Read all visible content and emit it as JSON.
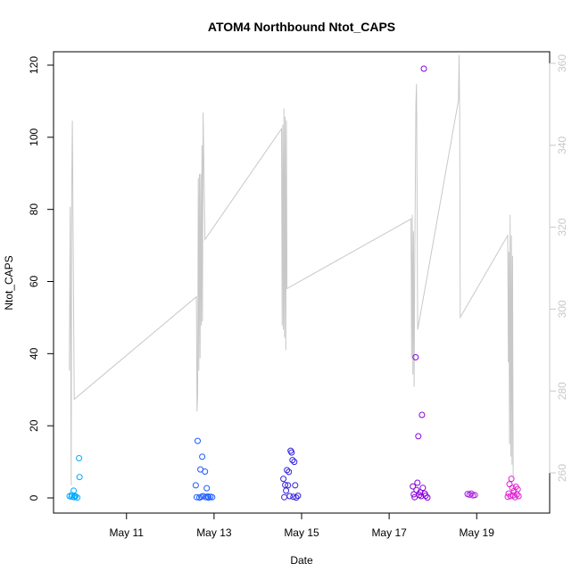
{
  "chart_data": {
    "type": "scatter",
    "title": "ATOM4 Northbound Ntot_CAPS",
    "xlabel": "Date",
    "ylabel": "Ntot_CAPS",
    "ylim": [
      0,
      120
    ],
    "x_ticks": [
      "May 11",
      "May 13",
      "May 15",
      "May 17",
      "May 19"
    ],
    "y_ticks": [
      0,
      20,
      40,
      60,
      80,
      100,
      120
    ],
    "y2_ticks": [
      260,
      280,
      300,
      320,
      340,
      360
    ],
    "y2_color": "#c8c8c8",
    "x_domain": [
      "May 9, 08:00",
      "May 20, 16:00"
    ],
    "series": [
      {
        "color": "#00aaff",
        "points": [
          [
            "May 9, 16:48",
            0.5
          ],
          [
            "May 9, 17:50",
            0.3
          ],
          [
            "May 9, 18:00",
            0.8
          ],
          [
            "May 9, 19:00",
            2.0
          ],
          [
            "May 9, 19:12",
            0.2
          ],
          [
            "May 9, 19:40",
            0.6
          ],
          [
            "May 9, 20:00",
            0.4
          ],
          [
            "May 9, 21:00",
            0.1
          ],
          [
            "May 9, 22:00",
            11.0
          ],
          [
            "May 9, 22:15",
            5.8
          ]
        ]
      },
      {
        "color": "#1a5cff",
        "points": [
          [
            "May 12, 14:00",
            3.5
          ],
          [
            "May 12, 14:30",
            0.2
          ],
          [
            "May 12, 15:00",
            15.8
          ],
          [
            "May 12, 16:00",
            0.1
          ],
          [
            "May 12, 16:30",
            7.9
          ],
          [
            "May 12, 17:00",
            0.3
          ],
          [
            "May 12, 17:30",
            11.4
          ],
          [
            "May 12, 18:00",
            0.5
          ],
          [
            "May 12, 19:00",
            7.3
          ],
          [
            "May 12, 19:30",
            0.2
          ],
          [
            "May 12, 20:00",
            2.7
          ],
          [
            "May 12, 20:30",
            0.4
          ],
          [
            "May 12, 21:00",
            0.1
          ],
          [
            "May 12, 22:00",
            0.3
          ],
          [
            "May 12, 23:00",
            0.2
          ]
        ]
      },
      {
        "color": "#3322dd",
        "points": [
          [
            "May 14, 14:00",
            5.3
          ],
          [
            "May 14, 14:30",
            0.2
          ],
          [
            "May 14, 15:00",
            3.6
          ],
          [
            "May 14, 15:30",
            2.0
          ],
          [
            "May 14, 16:00",
            7.7
          ],
          [
            "May 14, 16:30",
            3.5
          ],
          [
            "May 14, 17:00",
            7.2
          ],
          [
            "May 14, 17:30",
            0.5
          ],
          [
            "May 14, 18:00",
            13.1
          ],
          [
            "May 14, 18:30",
            12.6
          ],
          [
            "May 14, 19:00",
            10.5
          ],
          [
            "May 14, 19:30",
            0.3
          ],
          [
            "May 14, 20:00",
            10.0
          ],
          [
            "May 14, 20:30",
            3.5
          ],
          [
            "May 14, 21:00",
            0.1
          ],
          [
            "May 14, 22:00",
            0.6
          ]
        ]
      },
      {
        "color": "#8800dd",
        "points": [
          [
            "May 17, 13:00",
            3.2
          ],
          [
            "May 17, 13:30",
            1.0
          ],
          [
            "May 17, 14:00",
            0.2
          ],
          [
            "May 17, 14:30",
            39.0
          ],
          [
            "May 17, 15:00",
            2.2
          ],
          [
            "May 17, 15:30",
            4.2
          ],
          [
            "May 17, 16:00",
            17.1
          ],
          [
            "May 17, 16:30",
            0.8
          ],
          [
            "May 17, 17:00",
            1.5
          ],
          [
            "May 17, 17:30",
            0.5
          ],
          [
            "May 17, 18:00",
            23.0
          ],
          [
            "May 17, 18:30",
            2.8
          ],
          [
            "May 17, 19:00",
            119.0
          ],
          [
            "May 17, 19:30",
            1.2
          ],
          [
            "May 17, 20:00",
            0.6
          ],
          [
            "May 17, 21:00",
            0.1
          ]
        ]
      },
      {
        "color": "#aa22dd",
        "points": [
          [
            "May 18, 19:00",
            1.1
          ],
          [
            "May 18, 20:00",
            0.9
          ],
          [
            "May 18, 21:00",
            1.2
          ],
          [
            "May 18, 22:00",
            0.7
          ],
          [
            "May 18, 23:00",
            0.8
          ]
        ]
      },
      {
        "color": "#e020d0",
        "points": [
          [
            "May 19, 17:00",
            0.3
          ],
          [
            "May 19, 17:30",
            1.2
          ],
          [
            "May 19, 18:00",
            3.8
          ],
          [
            "May 19, 18:30",
            0.5
          ],
          [
            "May 19, 19:00",
            5.3
          ],
          [
            "May 19, 19:30",
            2.8
          ],
          [
            "May 19, 20:00",
            0.7
          ],
          [
            "May 19, 20:30",
            1.9
          ],
          [
            "May 19, 21:00",
            0.2
          ],
          [
            "May 19, 21:30",
            3.1
          ],
          [
            "May 19, 22:00",
            1.0
          ],
          [
            "May 19, 22:30",
            2.4
          ],
          [
            "May 19, 23:00",
            0.5
          ]
        ]
      }
    ],
    "line_series": {
      "axis": "right",
      "color": "#c8c8c8",
      "ylim": [
        250,
        365
      ],
      "points": [
        [
          "May 9, 16:40",
          285
        ],
        [
          "May 9, 17:10",
          325
        ],
        [
          "May 9, 17:40",
          257
        ],
        [
          "May 9, 18:00",
          330
        ],
        [
          "May 9, 18:20",
          346
        ],
        [
          "May 9, 19:20",
          278
        ],
        [
          "May 12, 14:20",
          303
        ],
        [
          "May 12, 14:40",
          275
        ],
        [
          "May 12, 15:00",
          279
        ],
        [
          "May 12, 15:20",
          332
        ],
        [
          "May 12, 15:40",
          285
        ],
        [
          "May 12, 16:00",
          333
        ],
        [
          "May 12, 16:20",
          288
        ],
        [
          "May 12, 16:40",
          333
        ],
        [
          "May 12, 17:00",
          296
        ],
        [
          "May 12, 17:20",
          340
        ],
        [
          "May 12, 17:40",
          297
        ],
        [
          "May 12, 18:00",
          348
        ],
        [
          "May 12, 19:00",
          317
        ],
        [
          "May 14, 13:00",
          344
        ],
        [
          "May 14, 13:20",
          296
        ],
        [
          "May 14, 13:40",
          345
        ],
        [
          "May 14, 14:00",
          295
        ],
        [
          "May 14, 14:20",
          349
        ],
        [
          "May 14, 14:40",
          293
        ],
        [
          "May 14, 15:00",
          347
        ],
        [
          "May 14, 15:20",
          290
        ],
        [
          "May 14, 15:40",
          346
        ],
        [
          "May 14, 16:00",
          305
        ],
        [
          "May 17, 12:00",
          322
        ],
        [
          "May 17, 12:20",
          288
        ],
        [
          "May 17, 12:40",
          323
        ],
        [
          "May 17, 13:00",
          284
        ],
        [
          "May 17, 13:20",
          319
        ],
        [
          "May 17, 13:40",
          281
        ],
        [
          "May 17, 14:00",
          307
        ],
        [
          "May 17, 14:40",
          350
        ],
        [
          "May 17, 15:00",
          355
        ],
        [
          "May 17, 15:40",
          295
        ],
        [
          "May 18, 14:00",
          351
        ],
        [
          "May 18, 14:20",
          362
        ],
        [
          "May 18, 14:40",
          346
        ],
        [
          "May 18, 15:00",
          298
        ],
        [
          "May 19, 17:00",
          318
        ],
        [
          "May 19, 17:20",
          287
        ],
        [
          "May 19, 17:40",
          314
        ],
        [
          "May 19, 18:00",
          267
        ],
        [
          "May 19, 18:20",
          323
        ],
        [
          "May 19, 18:40",
          264
        ],
        [
          "May 19, 19:00",
          318
        ],
        [
          "May 19, 19:20",
          262
        ],
        [
          "May 19, 19:40",
          313
        ],
        [
          "May 19, 20:00",
          259
        ]
      ]
    }
  }
}
